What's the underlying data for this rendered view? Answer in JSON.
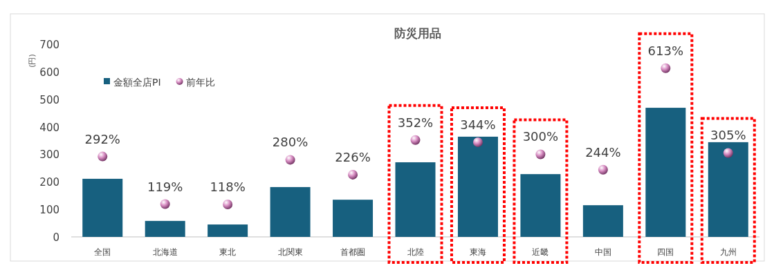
{
  "chart_data": {
    "type": "bar",
    "title": "防災用品",
    "ylabel": "(円)",
    "categories": [
      "全国",
      "北海道",
      "東北",
      "北関東",
      "首都圏",
      "北陸",
      "東海",
      "近畿",
      "中国",
      "四国",
      "九州"
    ],
    "series": [
      {
        "name": "金額全店PI",
        "color": "#17607f",
        "values": [
          211,
          58,
          45,
          181,
          135,
          271,
          364,
          228,
          115,
          469,
          344
        ]
      },
      {
        "name": "前年比",
        "type": "scatter",
        "color": "#d98fc4",
        "marker": "circle",
        "values": [
          292,
          119,
          118,
          280,
          226,
          352,
          344,
          300,
          244,
          613,
          305
        ],
        "value_labels": [
          "292%",
          "119%",
          "118%",
          "280%",
          "226%",
          "352%",
          "344%",
          "300%",
          "244%",
          "613%",
          "305%"
        ]
      }
    ],
    "ylim": [
      0,
      700
    ],
    "yticks": [
      0,
      100,
      200,
      300,
      400,
      500,
      600,
      700
    ],
    "legend": "top left",
    "grid": false
  }
}
